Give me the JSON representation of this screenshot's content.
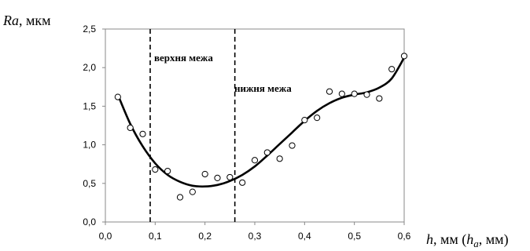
{
  "chart_data": {
    "type": "scatter",
    "title": "",
    "ylabel_italic": "Ra",
    "ylabel_unit": ", мкм",
    "xlabel_italic": "h",
    "xlabel_mid": ", мм (",
    "xlabel_italic2": "h",
    "xlabel_sub": "a",
    "xlabel_tail": ", мм)",
    "xlim": [
      0,
      0.6
    ],
    "ylim": [
      0,
      2.5
    ],
    "x_ticks": [
      "0,0",
      "0,1",
      "0,2",
      "0,3",
      "0,4",
      "0,5",
      "0,6"
    ],
    "y_ticks": [
      "0,0",
      "0,5",
      "1,0",
      "1,5",
      "2,0",
      "2,5"
    ],
    "series": [
      {
        "points": [
          [
            0.025,
            1.62
          ],
          [
            0.05,
            1.22
          ],
          [
            0.075,
            1.14
          ],
          [
            0.1,
            0.68
          ],
          [
            0.125,
            0.66
          ],
          [
            0.15,
            0.32
          ],
          [
            0.175,
            0.39
          ],
          [
            0.2,
            0.62
          ],
          [
            0.225,
            0.57
          ],
          [
            0.25,
            0.58
          ],
          [
            0.275,
            0.51
          ],
          [
            0.3,
            0.8
          ],
          [
            0.325,
            0.9
          ],
          [
            0.35,
            0.82
          ],
          [
            0.375,
            0.99
          ],
          [
            0.4,
            1.32
          ],
          [
            0.425,
            1.35
          ],
          [
            0.45,
            1.69
          ],
          [
            0.475,
            1.66
          ],
          [
            0.5,
            1.66
          ],
          [
            0.525,
            1.65
          ],
          [
            0.55,
            1.6
          ],
          [
            0.575,
            1.98
          ],
          [
            0.6,
            2.15
          ]
        ]
      },
      {
        "points": [
          [
            0.025,
            1.65
          ],
          [
            0.05,
            1.27
          ],
          [
            0.075,
            0.98
          ],
          [
            0.1,
            0.76
          ],
          [
            0.125,
            0.61
          ],
          [
            0.15,
            0.52
          ],
          [
            0.175,
            0.47
          ],
          [
            0.2,
            0.46
          ],
          [
            0.225,
            0.48
          ],
          [
            0.25,
            0.53
          ],
          [
            0.275,
            0.61
          ],
          [
            0.3,
            0.72
          ],
          [
            0.325,
            0.86
          ],
          [
            0.35,
            1.01
          ],
          [
            0.375,
            1.16
          ],
          [
            0.4,
            1.31
          ],
          [
            0.425,
            1.44
          ],
          [
            0.45,
            1.54
          ],
          [
            0.475,
            1.61
          ],
          [
            0.5,
            1.65
          ],
          [
            0.525,
            1.68
          ],
          [
            0.55,
            1.74
          ],
          [
            0.575,
            1.86
          ],
          [
            0.6,
            2.13
          ]
        ]
      }
    ],
    "vlines": [
      {
        "x": 0.09,
        "label": "верхня межа"
      },
      {
        "x": 0.26,
        "label": "нижня межа"
      }
    ],
    "grid": false,
    "legend": "none"
  }
}
